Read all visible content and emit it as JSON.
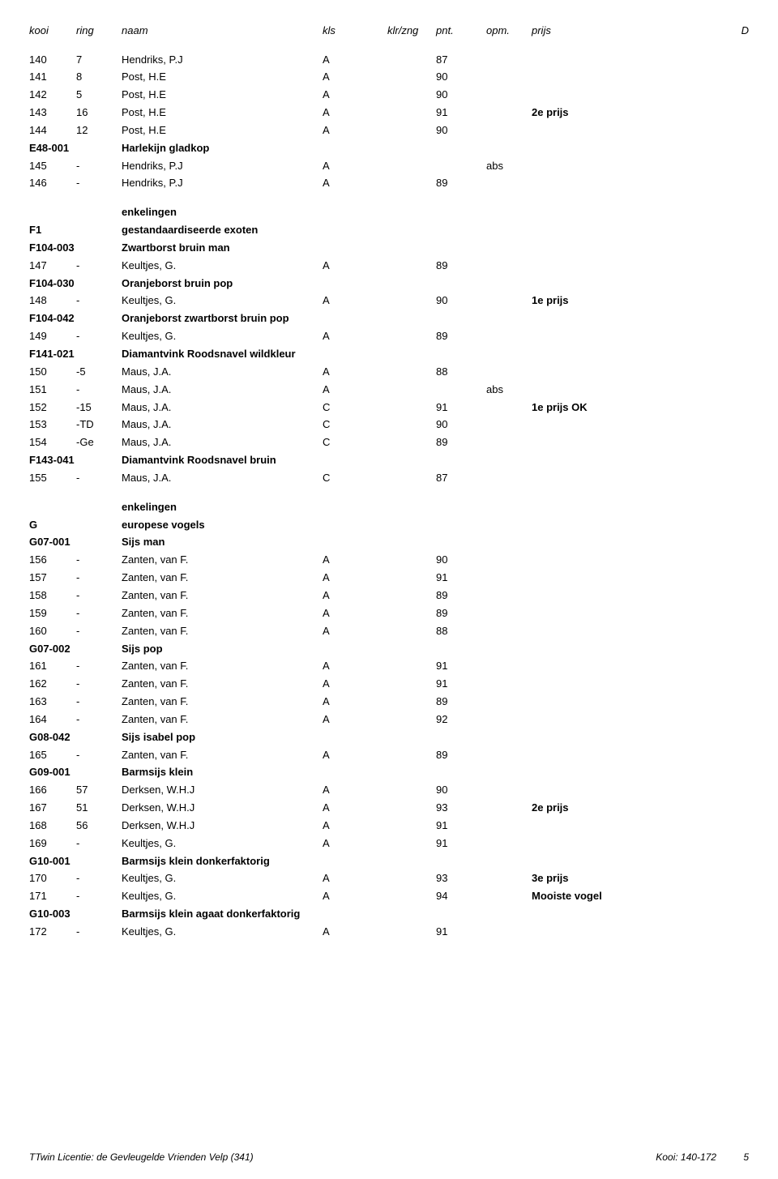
{
  "headers": {
    "kooi": "kooi",
    "ring": "ring",
    "naam": "naam",
    "kls": "kls",
    "klrzng": "klr/zng",
    "pnt": "pnt.",
    "opm": "opm.",
    "prijs": "prijs",
    "d": "D"
  },
  "rows": [
    {
      "type": "data",
      "kooi": "140",
      "ring": "7",
      "naam": "Hendriks, P.J",
      "kls": "A",
      "pnt": "87"
    },
    {
      "type": "data",
      "kooi": "141",
      "ring": "8",
      "naam": "Post, H.E",
      "kls": "A",
      "pnt": "90"
    },
    {
      "type": "data",
      "kooi": "142",
      "ring": "5",
      "naam": "Post, H.E",
      "kls": "A",
      "pnt": "90"
    },
    {
      "type": "data",
      "kooi": "143",
      "ring": "16",
      "naam": "Post, H.E",
      "kls": "A",
      "pnt": "91",
      "prijs": "2e prijs",
      "prijs_bold": true
    },
    {
      "type": "data",
      "kooi": "144",
      "ring": "12",
      "naam": "Post, H.E",
      "kls": "A",
      "pnt": "90"
    },
    {
      "type": "cat",
      "kooi": "E48-001",
      "naam": "Harlekijn gladkop"
    },
    {
      "type": "data",
      "kooi": "145",
      "ring": "-",
      "naam": "Hendriks, P.J",
      "kls": "A",
      "opm": "abs"
    },
    {
      "type": "data",
      "kooi": "146",
      "ring": "-",
      "naam": "Hendriks, P.J",
      "kls": "A",
      "pnt": "89"
    },
    {
      "type": "gap"
    },
    {
      "type": "sec",
      "naam": "enkelingen"
    },
    {
      "type": "sec",
      "kooi": "F1",
      "naam": "gestandaardiseerde exoten"
    },
    {
      "type": "cat",
      "kooi": "F104-003",
      "naam": "Zwartborst bruin man"
    },
    {
      "type": "data",
      "kooi": "147",
      "ring": "-",
      "naam": "Keultjes, G.",
      "kls": "A",
      "pnt": "89"
    },
    {
      "type": "cat",
      "kooi": "F104-030",
      "naam": "Oranjeborst bruin pop"
    },
    {
      "type": "data",
      "kooi": "148",
      "ring": "-",
      "naam": "Keultjes, G.",
      "kls": "A",
      "pnt": "90",
      "prijs": "1e prijs",
      "prijs_bold": true
    },
    {
      "type": "cat",
      "kooi": "F104-042",
      "naam": "Oranjeborst zwartborst bruin pop"
    },
    {
      "type": "data",
      "kooi": "149",
      "ring": "-",
      "naam": "Keultjes, G.",
      "kls": "A",
      "pnt": "89"
    },
    {
      "type": "cat",
      "kooi": "F141-021",
      "naam": "Diamantvink Roodsnavel wildkleur"
    },
    {
      "type": "data",
      "kooi": "150",
      "ring": "-5",
      "naam": "Maus, J.A.",
      "kls": "A",
      "pnt": "88"
    },
    {
      "type": "data",
      "kooi": "151",
      "ring": "-",
      "naam": "Maus, J.A.",
      "kls": "A",
      "opm": "abs"
    },
    {
      "type": "data",
      "kooi": "152",
      "ring": "-15",
      "naam": "Maus, J.A.",
      "kls": "C",
      "pnt": "91",
      "prijs": "1e prijs OK",
      "prijs_bold": true
    },
    {
      "type": "data",
      "kooi": "153",
      "ring": "-TD",
      "naam": "Maus, J.A.",
      "kls": "C",
      "pnt": "90"
    },
    {
      "type": "data",
      "kooi": "154",
      "ring": "-Ge",
      "naam": "Maus, J.A.",
      "kls": "C",
      "pnt": "89"
    },
    {
      "type": "cat",
      "kooi": "F143-041",
      "naam": "Diamantvink Roodsnavel bruin"
    },
    {
      "type": "data",
      "kooi": "155",
      "ring": "-",
      "naam": "Maus, J.A.",
      "kls": "C",
      "pnt": "87"
    },
    {
      "type": "gap"
    },
    {
      "type": "sec",
      "naam": "enkelingen"
    },
    {
      "type": "sec",
      "kooi": "G",
      "naam": "europese vogels"
    },
    {
      "type": "cat",
      "kooi": "G07-001",
      "naam": "Sijs man"
    },
    {
      "type": "data",
      "kooi": "156",
      "ring": "-",
      "naam": "Zanten, van F.",
      "kls": "A",
      "pnt": "90"
    },
    {
      "type": "data",
      "kooi": "157",
      "ring": "-",
      "naam": "Zanten, van F.",
      "kls": "A",
      "pnt": "91"
    },
    {
      "type": "data",
      "kooi": "158",
      "ring": "-",
      "naam": "Zanten, van F.",
      "kls": "A",
      "pnt": "89"
    },
    {
      "type": "data",
      "kooi": "159",
      "ring": "-",
      "naam": "Zanten, van F.",
      "kls": "A",
      "pnt": "89"
    },
    {
      "type": "data",
      "kooi": "160",
      "ring": "-",
      "naam": "Zanten, van F.",
      "kls": "A",
      "pnt": "88"
    },
    {
      "type": "cat",
      "kooi": "G07-002",
      "naam": "Sijs pop"
    },
    {
      "type": "data",
      "kooi": "161",
      "ring": "-",
      "naam": "Zanten, van F.",
      "kls": "A",
      "pnt": "91"
    },
    {
      "type": "data",
      "kooi": "162",
      "ring": "-",
      "naam": "Zanten, van F.",
      "kls": "A",
      "pnt": "91"
    },
    {
      "type": "data",
      "kooi": "163",
      "ring": "-",
      "naam": "Zanten, van F.",
      "kls": "A",
      "pnt": "89"
    },
    {
      "type": "data",
      "kooi": "164",
      "ring": "-",
      "naam": "Zanten, van F.",
      "kls": "A",
      "pnt": "92"
    },
    {
      "type": "cat",
      "kooi": "G08-042",
      "naam": "Sijs isabel pop"
    },
    {
      "type": "data",
      "kooi": "165",
      "ring": "-",
      "naam": "Zanten, van F.",
      "kls": "A",
      "pnt": "89"
    },
    {
      "type": "cat",
      "kooi": "G09-001",
      "naam": "Barmsijs klein"
    },
    {
      "type": "data",
      "kooi": "166",
      "ring": "57",
      "naam": "Derksen, W.H.J",
      "kls": "A",
      "pnt": "90"
    },
    {
      "type": "data",
      "kooi": "167",
      "ring": "51",
      "naam": "Derksen, W.H.J",
      "kls": "A",
      "pnt": "93",
      "prijs": "2e prijs",
      "prijs_bold": true
    },
    {
      "type": "data",
      "kooi": "168",
      "ring": "56",
      "naam": "Derksen, W.H.J",
      "kls": "A",
      "pnt": "91"
    },
    {
      "type": "data",
      "kooi": "169",
      "ring": "-",
      "naam": "Keultjes, G.",
      "kls": "A",
      "pnt": "91"
    },
    {
      "type": "cat",
      "kooi": "G10-001",
      "naam": "Barmsijs klein donkerfaktorig"
    },
    {
      "type": "data",
      "kooi": "170",
      "ring": "-",
      "naam": "Keultjes, G.",
      "kls": "A",
      "pnt": "93",
      "prijs": "3e prijs",
      "prijs_bold": true
    },
    {
      "type": "data",
      "kooi": "171",
      "ring": "-",
      "naam": "Keultjes, G.",
      "kls": "A",
      "pnt": "94",
      "prijs": "Mooiste vogel",
      "prijs_bold": true
    },
    {
      "type": "cat",
      "kooi": "G10-003",
      "naam": "Barmsijs klein agaat donkerfaktorig"
    },
    {
      "type": "data",
      "kooi": "172",
      "ring": "-",
      "naam": "Keultjes, G.",
      "kls": "A",
      "pnt": "91"
    }
  ],
  "footer": {
    "left": "TTwin Licentie: de Gevleugelde Vrienden Velp (341)",
    "right_label": "Kooi: 140-172",
    "page": "5"
  }
}
